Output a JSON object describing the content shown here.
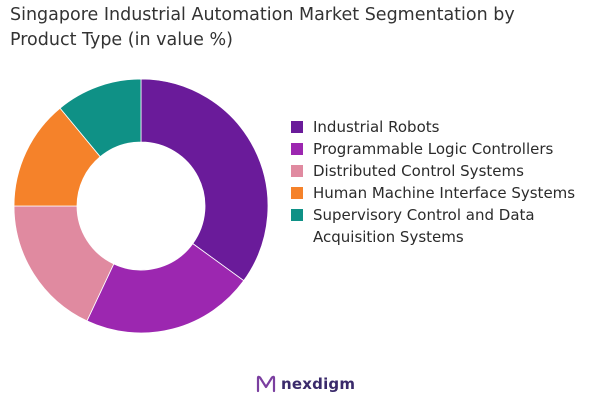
{
  "chart_data": {
    "type": "pie",
    "donut": true,
    "title": "Singapore Industrial Automation Market Segmentation by Product Type (in value %)",
    "categories": [
      "Industrial Robots",
      "Programmable Logic Controllers",
      "Distributed Control Systems",
      "Human Machine Interface Systems",
      "Supervisory Control and Data Acquisition Systems"
    ],
    "values": [
      35,
      22,
      18,
      14,
      11
    ],
    "colors": [
      "#6a1b9a",
      "#9c27b0",
      "#e08aa0",
      "#f5822a",
      "#0f9186"
    ],
    "legend_position": "right"
  },
  "brand": {
    "name": "nexdigm",
    "logo_icon": "nexdigm-logo-icon"
  }
}
